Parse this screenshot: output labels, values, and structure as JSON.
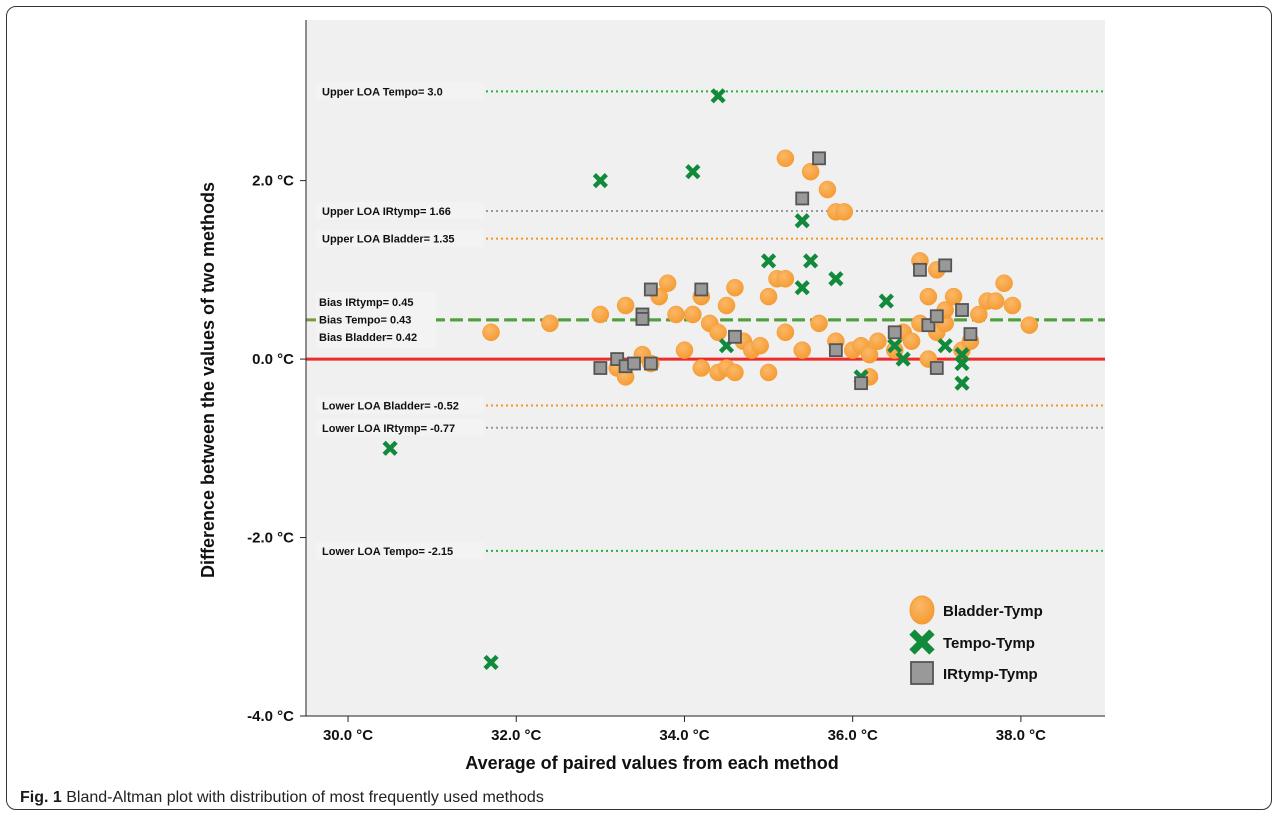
{
  "caption": {
    "fig_label": "Fig. 1",
    "text": "Bland-Altman plot with distribution of most frequently used methods"
  },
  "chart_data": {
    "type": "scatter",
    "title": "",
    "xlabel": "Average of paired values from each method",
    "ylabel": "Difference between the values of two methods",
    "xlim": [
      29.5,
      39.0
    ],
    "ylim": [
      -4.0,
      3.8
    ],
    "x_ticks": [
      {
        "value": 30.0,
        "label": "30.0 °C"
      },
      {
        "value": 32.0,
        "label": "32.0 °C"
      },
      {
        "value": 34.0,
        "label": "34.0 °C"
      },
      {
        "value": 36.0,
        "label": "36.0 °C"
      },
      {
        "value": 38.0,
        "label": "38.0 °C"
      }
    ],
    "y_ticks": [
      {
        "value": 2.0,
        "label": "2.0 °C"
      },
      {
        "value": 0.0,
        "label": "0.0 °C"
      },
      {
        "value": -2.0,
        "label": "-2.0 °C"
      },
      {
        "value": -4.0,
        "label": "-4.0 °C"
      }
    ],
    "grid": false,
    "legend_position": "bottom-right",
    "background_color": "#f0f0f0",
    "zero_line": {
      "y": 0.0,
      "color": "#ee2a2a"
    },
    "reference_lines": [
      {
        "y": 3.0,
        "label": "Upper LOA Tempo= 3.0",
        "color": "#22b33a",
        "style": "dotted"
      },
      {
        "y": 1.66,
        "label": "Upper LOA IRtymp= 1.66",
        "color": "#999999",
        "style": "dotted"
      },
      {
        "y": 1.35,
        "label": "Upper LOA Bladder= 1.35",
        "color": "#f7941d",
        "style": "dotted"
      },
      {
        "y": 0.44,
        "label": "",
        "color": "#7a9a3a",
        "style": "dashed"
      },
      {
        "y": -0.52,
        "label": "Lower LOA Bladder= -0.52",
        "color": "#f7941d",
        "style": "dotted"
      },
      {
        "y": -0.77,
        "label": "Lower LOA IRtymp= -0.77",
        "color": "#999999",
        "style": "dotted"
      },
      {
        "y": -2.15,
        "label": "Lower LOA Tempo= -2.15",
        "color": "#22b33a",
        "style": "dotted"
      }
    ],
    "bias_labels": [
      "Bias IRtymp= 0.45",
      "Bias Tempo= 0.43",
      "Bias Bladder= 0.42"
    ],
    "series": [
      {
        "name": "Bladder-Tymp",
        "marker": "circle",
        "color": "#f9a040",
        "points": [
          [
            31.7,
            0.3
          ],
          [
            32.4,
            0.4
          ],
          [
            33.0,
            0.5
          ],
          [
            33.2,
            -0.1
          ],
          [
            33.3,
            0.6
          ],
          [
            33.3,
            -0.2
          ],
          [
            33.5,
            0.05
          ],
          [
            33.6,
            -0.05
          ],
          [
            33.7,
            0.7
          ],
          [
            33.8,
            0.85
          ],
          [
            33.9,
            0.5
          ],
          [
            34.0,
            0.1
          ],
          [
            34.1,
            0.5
          ],
          [
            34.2,
            -0.1
          ],
          [
            34.2,
            0.7
          ],
          [
            34.3,
            0.4
          ],
          [
            34.4,
            0.3
          ],
          [
            34.4,
            -0.15
          ],
          [
            34.5,
            0.6
          ],
          [
            34.5,
            -0.1
          ],
          [
            34.6,
            0.8
          ],
          [
            34.6,
            -0.15
          ],
          [
            34.7,
            0.2
          ],
          [
            34.8,
            0.1
          ],
          [
            34.9,
            0.15
          ],
          [
            35.0,
            0.7
          ],
          [
            35.0,
            -0.15
          ],
          [
            35.1,
            0.9
          ],
          [
            35.2,
            0.3
          ],
          [
            35.2,
            0.9
          ],
          [
            35.2,
            2.25
          ],
          [
            35.4,
            0.1
          ],
          [
            35.5,
            2.1
          ],
          [
            35.6,
            0.4
          ],
          [
            35.7,
            1.9
          ],
          [
            35.8,
            1.65
          ],
          [
            35.8,
            0.2
          ],
          [
            35.9,
            1.65
          ],
          [
            36.0,
            0.1
          ],
          [
            36.1,
            0.15
          ],
          [
            36.2,
            0.05
          ],
          [
            36.2,
            -0.2
          ],
          [
            36.3,
            0.2
          ],
          [
            36.5,
            0.1
          ],
          [
            36.6,
            0.3
          ],
          [
            36.7,
            0.2
          ],
          [
            36.8,
            1.1
          ],
          [
            36.8,
            0.4
          ],
          [
            36.9,
            0.0
          ],
          [
            36.9,
            0.7
          ],
          [
            37.0,
            1.0
          ],
          [
            37.0,
            0.3
          ],
          [
            37.1,
            0.4
          ],
          [
            37.1,
            0.55
          ],
          [
            37.2,
            0.7
          ],
          [
            37.3,
            0.1
          ],
          [
            37.4,
            0.2
          ],
          [
            37.5,
            0.5
          ],
          [
            37.6,
            0.65
          ],
          [
            37.7,
            0.65
          ],
          [
            37.8,
            0.85
          ],
          [
            37.9,
            0.6
          ],
          [
            38.1,
            0.38
          ]
        ]
      },
      {
        "name": "Tempo-Tymp",
        "marker": "cross",
        "color": "#128a3c",
        "points": [
          [
            30.5,
            -1.0
          ],
          [
            31.7,
            -3.4
          ],
          [
            33.0,
            2.0
          ],
          [
            34.1,
            2.1
          ],
          [
            34.4,
            2.95
          ],
          [
            34.5,
            0.15
          ],
          [
            35.0,
            1.1
          ],
          [
            35.4,
            0.8
          ],
          [
            35.4,
            1.55
          ],
          [
            35.5,
            1.1
          ],
          [
            35.8,
            0.9
          ],
          [
            36.1,
            -0.2
          ],
          [
            36.4,
            0.65
          ],
          [
            36.5,
            0.15
          ],
          [
            36.6,
            0.0
          ],
          [
            37.1,
            0.15
          ],
          [
            37.3,
            0.05
          ],
          [
            37.3,
            -0.05
          ],
          [
            37.3,
            -0.27
          ]
        ]
      },
      {
        "name": "IRtymp-Tymp",
        "marker": "square",
        "color": "#999999",
        "points": [
          [
            33.0,
            -0.1
          ],
          [
            33.2,
            0.0
          ],
          [
            33.3,
            -0.08
          ],
          [
            33.4,
            -0.05
          ],
          [
            33.5,
            0.5
          ],
          [
            33.5,
            0.45
          ],
          [
            33.6,
            -0.05
          ],
          [
            33.6,
            0.78
          ],
          [
            34.2,
            0.78
          ],
          [
            34.6,
            0.25
          ],
          [
            35.4,
            1.8
          ],
          [
            35.6,
            2.25
          ],
          [
            35.8,
            0.1
          ],
          [
            36.1,
            -0.27
          ],
          [
            36.5,
            0.3
          ],
          [
            36.8,
            1.0
          ],
          [
            36.9,
            0.38
          ],
          [
            37.0,
            -0.1
          ],
          [
            37.0,
            0.48
          ],
          [
            37.1,
            1.05
          ],
          [
            37.3,
            0.55
          ],
          [
            37.4,
            0.28
          ]
        ]
      }
    ]
  }
}
